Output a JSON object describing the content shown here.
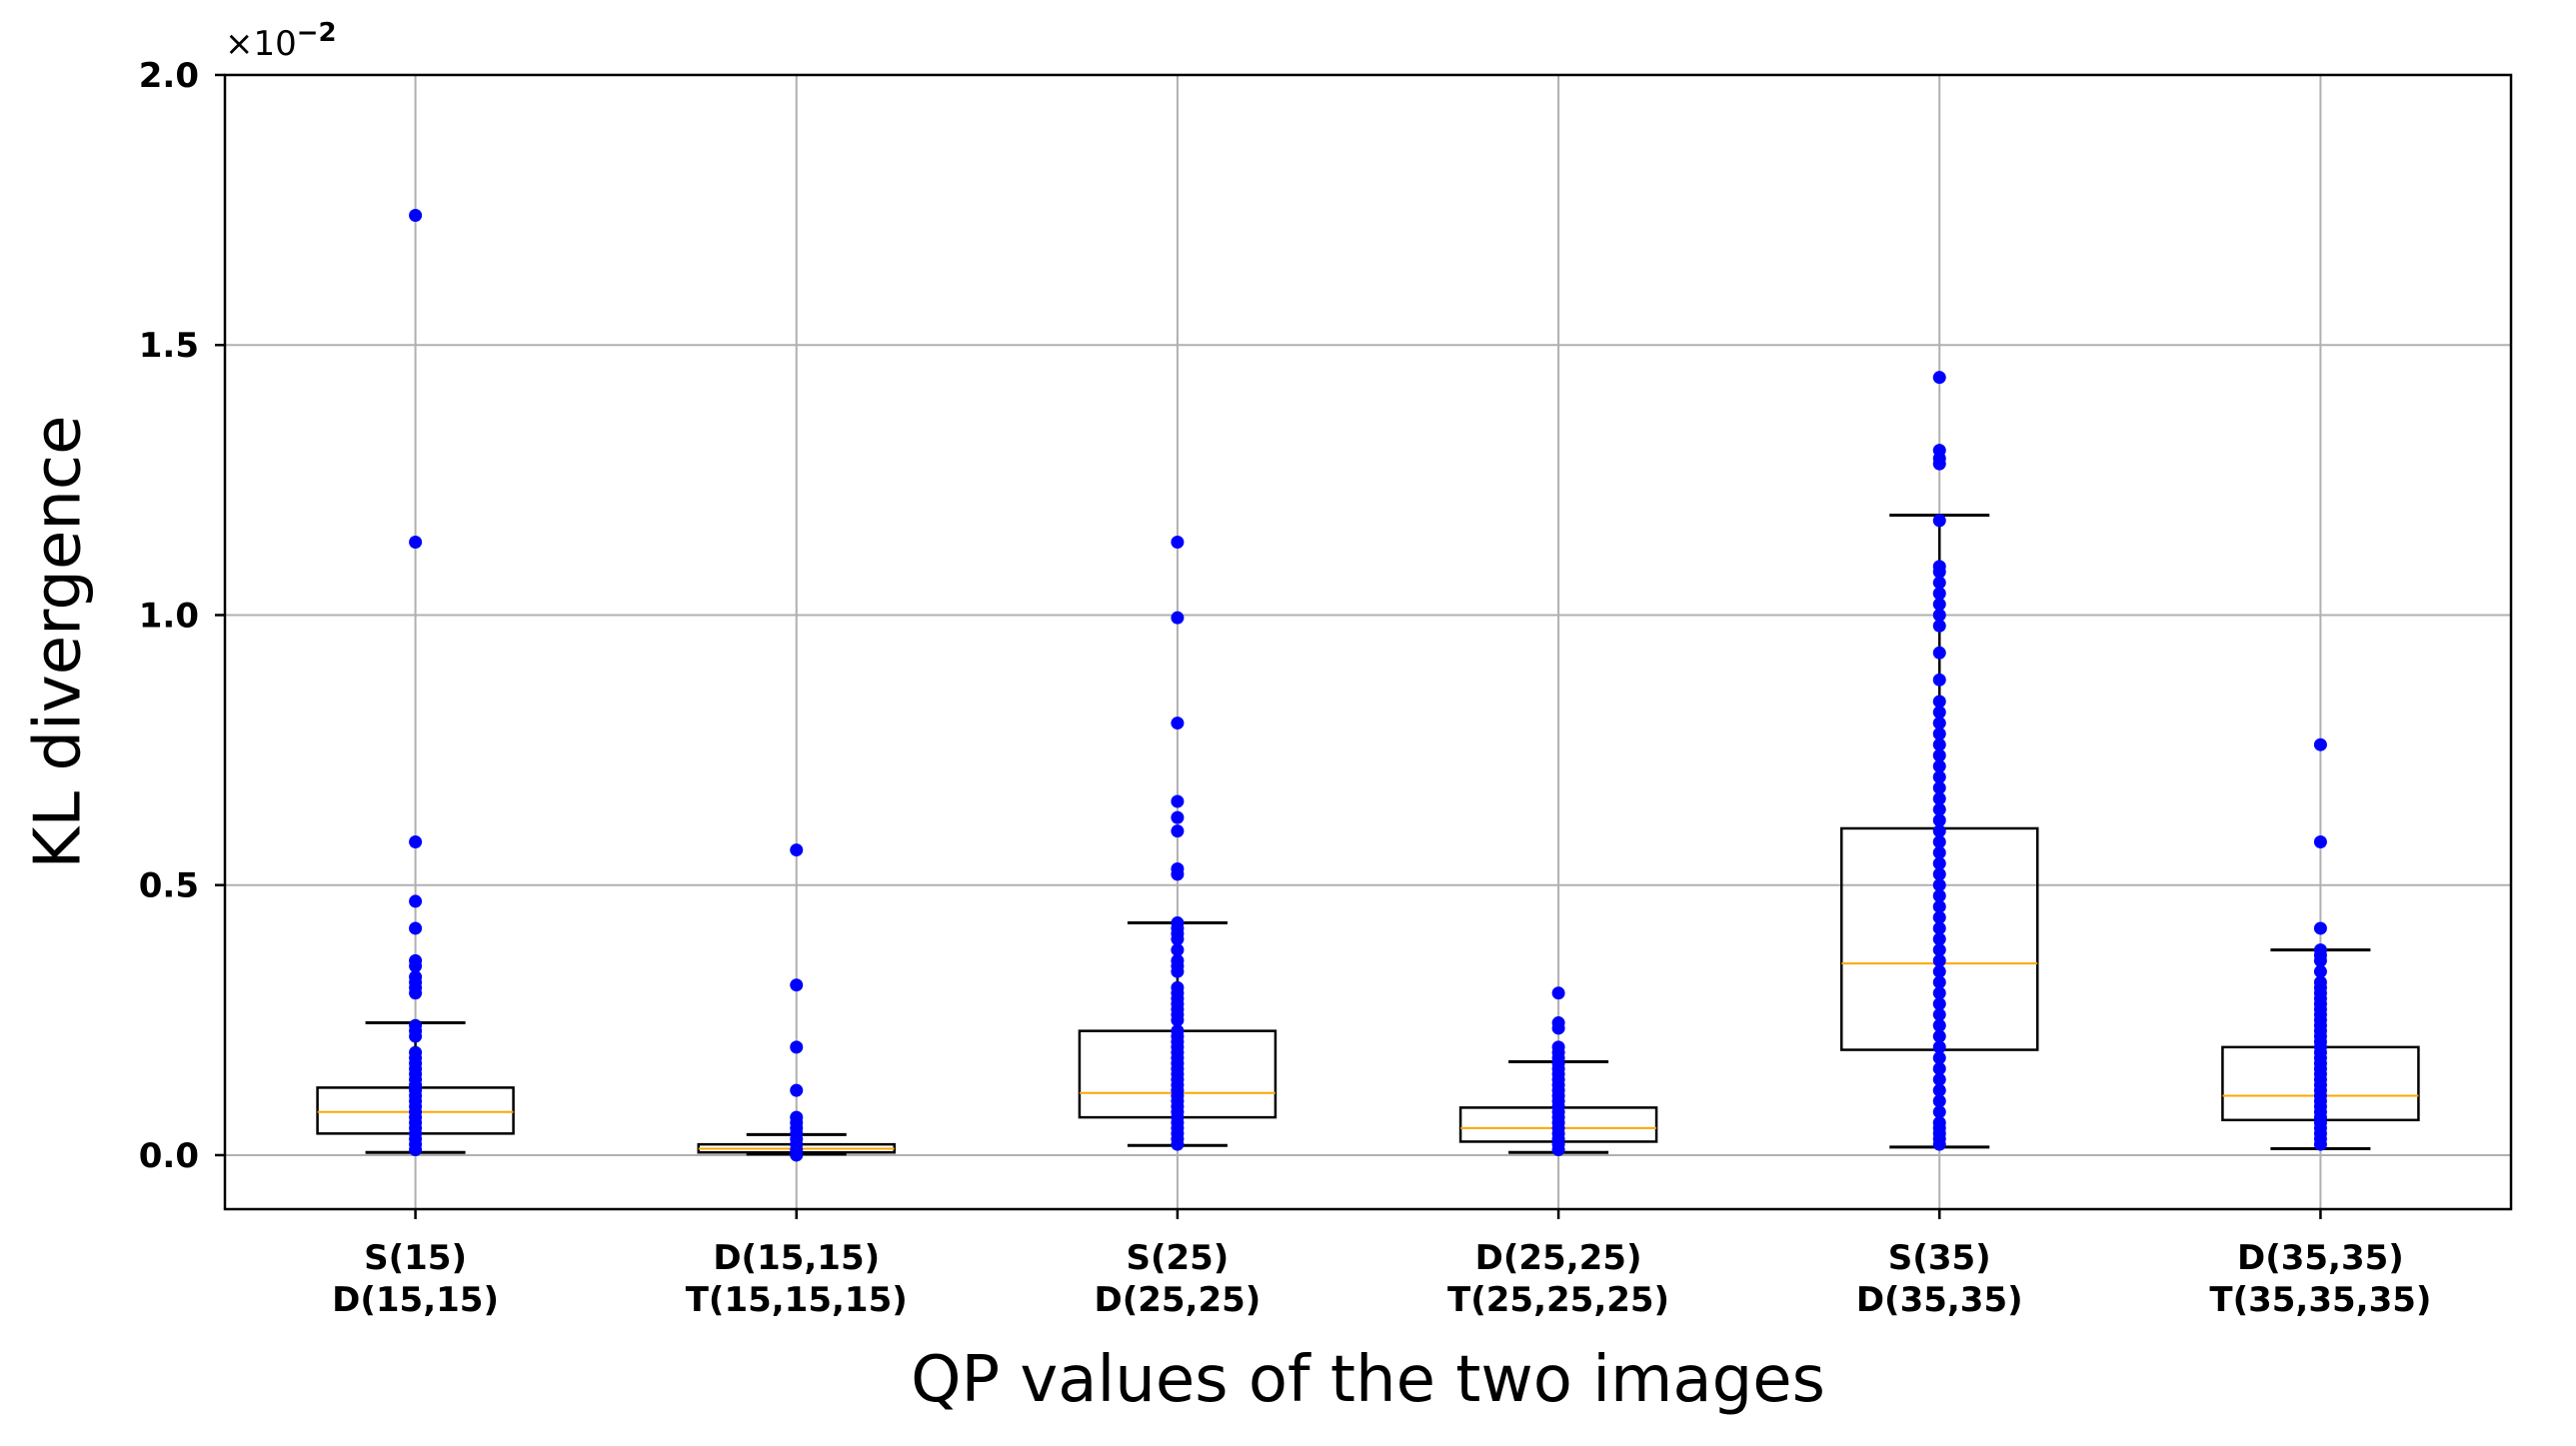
{
  "chart_data": {
    "type": "box",
    "title": "",
    "xlabel": "QP values of the two images",
    "ylabel": "KL divergence",
    "y_offset_text": "×10",
    "y_offset_exponent": "−2",
    "ylim": [
      -0.1,
      2.0
    ],
    "yticks": [
      0.0,
      0.5,
      1.0,
      1.5,
      2.0
    ],
    "ytick_labels": [
      "0.0",
      "0.5",
      "1.0",
      "1.5",
      "2.0"
    ],
    "grid": true,
    "colors": {
      "points": "#0000ff",
      "median": "#ffa500",
      "box": "#000000",
      "grid": "#b0b0b0"
    },
    "categories": [
      {
        "label_line1": "S(15)",
        "label_line2": "D(15,15)",
        "whisker_low": 0.005,
        "q1": 0.04,
        "median": 0.08,
        "q3": 0.125,
        "whisker_high": 0.245,
        "points": [
          1.74,
          1.135,
          0.58,
          0.47,
          0.42,
          0.36,
          0.35,
          0.33,
          0.32,
          0.31,
          0.3,
          0.24,
          0.23,
          0.22,
          0.19,
          0.18,
          0.17,
          0.16,
          0.15,
          0.14,
          0.13,
          0.12,
          0.11,
          0.1,
          0.09,
          0.08,
          0.07,
          0.06,
          0.05,
          0.04,
          0.03,
          0.02,
          0.01
        ]
      },
      {
        "label_line1": "D(15,15)",
        "label_line2": "T(15,15,15)",
        "whisker_low": 0.002,
        "q1": 0.005,
        "median": 0.012,
        "q3": 0.02,
        "whisker_high": 0.038,
        "points": [
          0.565,
          0.315,
          0.2,
          0.12,
          0.07,
          0.06,
          0.05,
          0.04,
          0.03,
          0.02,
          0.01,
          0.0
        ]
      },
      {
        "label_line1": "S(25)",
        "label_line2": "D(25,25)",
        "whisker_low": 0.018,
        "q1": 0.07,
        "median": 0.115,
        "q3": 0.23,
        "whisker_high": 0.43,
        "points": [
          1.135,
          0.995,
          0.8,
          0.655,
          0.625,
          0.6,
          0.53,
          0.52,
          0.43,
          0.42,
          0.41,
          0.4,
          0.38,
          0.36,
          0.35,
          0.34,
          0.31,
          0.3,
          0.29,
          0.28,
          0.27,
          0.26,
          0.25,
          0.23,
          0.22,
          0.21,
          0.2,
          0.19,
          0.18,
          0.17,
          0.16,
          0.15,
          0.14,
          0.13,
          0.12,
          0.11,
          0.1,
          0.09,
          0.08,
          0.07,
          0.06,
          0.05,
          0.04,
          0.03,
          0.02
        ]
      },
      {
        "label_line1": "D(25,25)",
        "label_line2": "T(25,25,25)",
        "whisker_low": 0.005,
        "q1": 0.025,
        "median": 0.05,
        "q3": 0.088,
        "whisker_high": 0.173,
        "points": [
          0.3,
          0.245,
          0.235,
          0.2,
          0.19,
          0.18,
          0.17,
          0.16,
          0.15,
          0.14,
          0.13,
          0.12,
          0.11,
          0.1,
          0.09,
          0.08,
          0.07,
          0.06,
          0.05,
          0.04,
          0.03,
          0.02,
          0.01
        ]
      },
      {
        "label_line1": "S(35)",
        "label_line2": "D(35,35)",
        "whisker_low": 0.015,
        "q1": 0.195,
        "median": 0.355,
        "q3": 0.605,
        "whisker_high": 1.185,
        "points": [
          1.44,
          1.305,
          1.29,
          1.28,
          1.175,
          1.09,
          1.08,
          1.06,
          1.04,
          1.02,
          1.0,
          0.98,
          0.93,
          0.88,
          0.84,
          0.82,
          0.8,
          0.78,
          0.76,
          0.74,
          0.72,
          0.7,
          0.68,
          0.66,
          0.64,
          0.62,
          0.6,
          0.58,
          0.56,
          0.54,
          0.52,
          0.5,
          0.48,
          0.46,
          0.44,
          0.42,
          0.4,
          0.38,
          0.36,
          0.34,
          0.32,
          0.3,
          0.28,
          0.26,
          0.24,
          0.22,
          0.2,
          0.18,
          0.16,
          0.14,
          0.12,
          0.1,
          0.08,
          0.06,
          0.05,
          0.04,
          0.03,
          0.02
        ]
      },
      {
        "label_line1": "D(35,35)",
        "label_line2": "T(35,35,35)",
        "whisker_low": 0.012,
        "q1": 0.065,
        "median": 0.11,
        "q3": 0.2,
        "whisker_high": 0.38,
        "points": [
          0.76,
          0.58,
          0.42,
          0.38,
          0.37,
          0.36,
          0.34,
          0.32,
          0.31,
          0.3,
          0.29,
          0.28,
          0.27,
          0.26,
          0.25,
          0.24,
          0.23,
          0.22,
          0.21,
          0.2,
          0.19,
          0.18,
          0.17,
          0.16,
          0.15,
          0.14,
          0.13,
          0.12,
          0.11,
          0.1,
          0.09,
          0.08,
          0.07,
          0.06,
          0.05,
          0.04,
          0.03,
          0.02
        ]
      }
    ]
  }
}
